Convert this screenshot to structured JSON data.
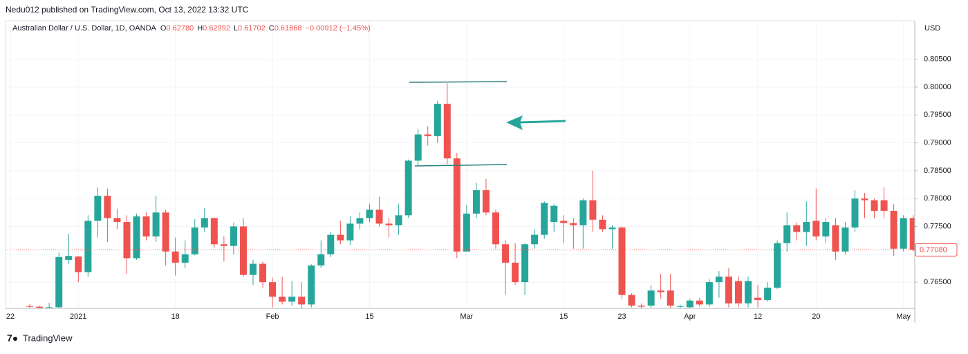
{
  "header": {
    "published": "Nedu012 published on TradingView.com, Oct 13, 2022 13:32 UTC"
  },
  "footer": {
    "brand": "TradingView"
  },
  "chart_data": {
    "type": "candlestick",
    "title": "Australian Dollar / U.S. Dollar, 1D, OANDA",
    "ohlc_legend": [
      {
        "label": "O",
        "text": "0.62780"
      },
      {
        "label": "H",
        "text": "0.62992"
      },
      {
        "label": "L",
        "text": "0.61702"
      },
      {
        "label": "C",
        "text": "0.61868"
      }
    ],
    "change": "−0.00912 (−1.45%)",
    "y_axis_label": "USD",
    "up_color": "#26a69a",
    "down_color": "#ef5350",
    "grid": true,
    "ylim": [
      0.7603,
      0.8119
    ],
    "yticks": [
      {
        "value": 0.765,
        "label": "0.76500"
      },
      {
        "value": 0.77,
        "label": "0.77000"
      },
      {
        "value": 0.775,
        "label": "0.77500"
      },
      {
        "value": 0.78,
        "label": "0.78000"
      },
      {
        "value": 0.785,
        "label": "0.78500"
      },
      {
        "value": 0.79,
        "label": "0.79000"
      },
      {
        "value": 0.795,
        "label": "0.79500"
      },
      {
        "value": 0.8,
        "label": "0.80000"
      },
      {
        "value": 0.805,
        "label": "0.80500"
      }
    ],
    "last_price": {
      "value": 0.7708,
      "label": "0.77080"
    },
    "categories": [
      "22",
      null,
      null,
      null,
      null,
      null,
      null,
      "2021",
      null,
      null,
      null,
      null,
      null,
      null,
      null,
      null,
      null,
      "18",
      null,
      null,
      null,
      null,
      null,
      null,
      null,
      null,
      null,
      "Feb",
      null,
      null,
      null,
      null,
      null,
      null,
      null,
      null,
      null,
      "15",
      null,
      null,
      null,
      null,
      null,
      null,
      null,
      null,
      null,
      "Mar",
      null,
      null,
      null,
      null,
      null,
      null,
      null,
      null,
      null,
      "15",
      null,
      null,
      null,
      null,
      null,
      "23",
      null,
      null,
      null,
      null,
      null,
      null,
      "Apr",
      null,
      null,
      null,
      null,
      null,
      null,
      "12",
      null,
      null,
      null,
      null,
      null,
      "20",
      null,
      null,
      null,
      null,
      null,
      null,
      null,
      null,
      "May",
      null
    ],
    "open": [
      null,
      null,
      0.7607,
      0.7606,
      0.7604,
      0.7605,
      0.769,
      0.7696,
      0.7668,
      0.776,
      0.7805,
      0.7765,
      0.7758,
      0.7693,
      0.7768,
      0.7732,
      0.7775,
      0.7705,
      0.7685,
      0.77,
      0.7748,
      0.7765,
      0.7718,
      0.7715,
      0.775,
      0.7663,
      0.7683,
      0.765,
      0.7624,
      0.7615,
      0.7624,
      0.761,
      0.768,
      0.77,
      0.7735,
      0.7725,
      0.7755,
      0.7765,
      0.778,
      0.7755,
      0.7752,
      0.777,
      0.7868,
      0.7915,
      0.7912,
      0.797,
      0.7872,
      0.7705,
      0.7773,
      0.7815,
      0.7775,
      0.7718,
      0.7685,
      0.765,
      0.7718,
      0.7735,
      0.7758,
      0.776,
      0.7756,
      0.7752,
      0.7797,
      0.7762,
      0.7745,
      0.7748,
      0.7627,
      0.7608,
      0.7608,
      0.7635,
      0.7635,
      0.7606,
      0.7605,
      0.7617,
      0.761,
      0.765,
      0.766,
      0.7652,
      0.7612,
      0.7622,
      0.7618,
      0.764,
      0.772,
      0.7752,
      0.774,
      0.776,
      0.7732,
      0.7752,
      0.7705,
      0.7748,
      0.78,
      0.7797,
      0.7797,
      0.7778,
      0.771,
      0.7765
    ],
    "high": [
      null,
      null,
      0.7611,
      0.7608,
      0.7613,
      0.7703,
      0.7737,
      0.7697,
      0.777,
      0.782,
      0.7818,
      0.7782,
      0.777,
      0.7773,
      0.7775,
      0.7805,
      0.778,
      0.773,
      0.7725,
      0.7763,
      0.7783,
      0.7766,
      0.7732,
      0.7757,
      0.7765,
      0.769,
      0.7687,
      0.7658,
      0.766,
      0.7652,
      0.765,
      0.7682,
      0.7725,
      0.774,
      0.776,
      0.7768,
      0.7775,
      0.779,
      0.7803,
      0.7765,
      0.779,
      0.787,
      0.7925,
      0.793,
      0.7975,
      0.8007,
      0.7882,
      0.7788,
      0.7828,
      0.7835,
      0.778,
      0.7725,
      0.772,
      0.772,
      0.7745,
      0.7795,
      0.779,
      0.777,
      0.7765,
      0.78,
      0.785,
      0.777,
      0.7752,
      0.775,
      0.763,
      0.7612,
      0.7645,
      0.7665,
      0.7665,
      0.761,
      0.762,
      0.7622,
      0.7655,
      0.767,
      0.7675,
      0.766,
      0.766,
      0.7645,
      0.765,
      0.7725,
      0.7775,
      0.7757,
      0.7795,
      0.7818,
      0.7765,
      0.7765,
      0.7758,
      0.7815,
      0.781,
      0.78,
      0.782,
      0.779,
      0.777,
      0.777
    ],
    "low": [
      null,
      null,
      0.7603,
      0.7603,
      0.7603,
      0.7603,
      0.7683,
      0.765,
      0.766,
      0.773,
      0.7722,
      0.7745,
      0.7665,
      0.769,
      0.7725,
      0.7722,
      0.768,
      0.7662,
      0.7675,
      0.7698,
      0.774,
      0.7712,
      0.7687,
      0.77,
      0.766,
      0.7645,
      0.764,
      0.7605,
      0.761,
      0.7607,
      0.7603,
      0.7605,
      0.7675,
      0.7695,
      0.7718,
      0.7717,
      0.7745,
      0.7758,
      0.775,
      0.773,
      0.7735,
      0.7765,
      0.7858,
      0.7895,
      0.79,
      0.7862,
      0.7693,
      0.7705,
      0.7765,
      0.777,
      0.771,
      0.7628,
      0.7645,
      0.7627,
      0.771,
      0.7728,
      0.774,
      0.772,
      0.771,
      0.771,
      0.774,
      0.774,
      0.771,
      0.762,
      0.7605,
      0.7603,
      0.7604,
      0.762,
      0.7604,
      0.7603,
      0.7603,
      0.7606,
      0.7606,
      0.7622,
      0.7605,
      0.7605,
      0.7605,
      0.7605,
      0.7615,
      0.7638,
      0.7705,
      0.7725,
      0.7715,
      0.7725,
      0.772,
      0.769,
      0.77,
      0.774,
      0.7765,
      0.7765,
      0.7765,
      0.7697,
      0.7705,
      0.7705
    ],
    "close": [
      null,
      null,
      0.7606,
      0.7604,
      0.7605,
      0.7695,
      0.7697,
      0.7668,
      0.776,
      0.7805,
      0.7765,
      0.7758,
      0.7693,
      0.7768,
      0.7732,
      0.7775,
      0.7705,
      0.7685,
      0.77,
      0.7748,
      0.7765,
      0.7718,
      0.7715,
      0.775,
      0.7663,
      0.7683,
      0.765,
      0.7624,
      0.7615,
      0.7624,
      0.761,
      0.768,
      0.77,
      0.7735,
      0.7725,
      0.7755,
      0.7765,
      0.778,
      0.7755,
      0.7752,
      0.777,
      0.7868,
      0.7915,
      0.7912,
      0.797,
      0.7872,
      0.7705,
      0.7773,
      0.7815,
      0.7775,
      0.7718,
      0.7685,
      0.765,
      0.7718,
      0.7735,
      0.7792,
      0.7787,
      0.7756,
      0.7752,
      0.7797,
      0.7762,
      0.7745,
      0.7748,
      0.7627,
      0.7608,
      0.7606,
      0.7635,
      0.7632,
      0.7608,
      0.7607,
      0.7617,
      0.761,
      0.765,
      0.766,
      0.7612,
      0.7612,
      0.7652,
      0.7618,
      0.764,
      0.772,
      0.7752,
      0.774,
      0.7758,
      0.7732,
      0.7758,
      0.7705,
      0.7748,
      0.78,
      0.7797,
      0.7778,
      0.7778,
      0.771,
      0.7765,
      0.7708
    ]
  }
}
